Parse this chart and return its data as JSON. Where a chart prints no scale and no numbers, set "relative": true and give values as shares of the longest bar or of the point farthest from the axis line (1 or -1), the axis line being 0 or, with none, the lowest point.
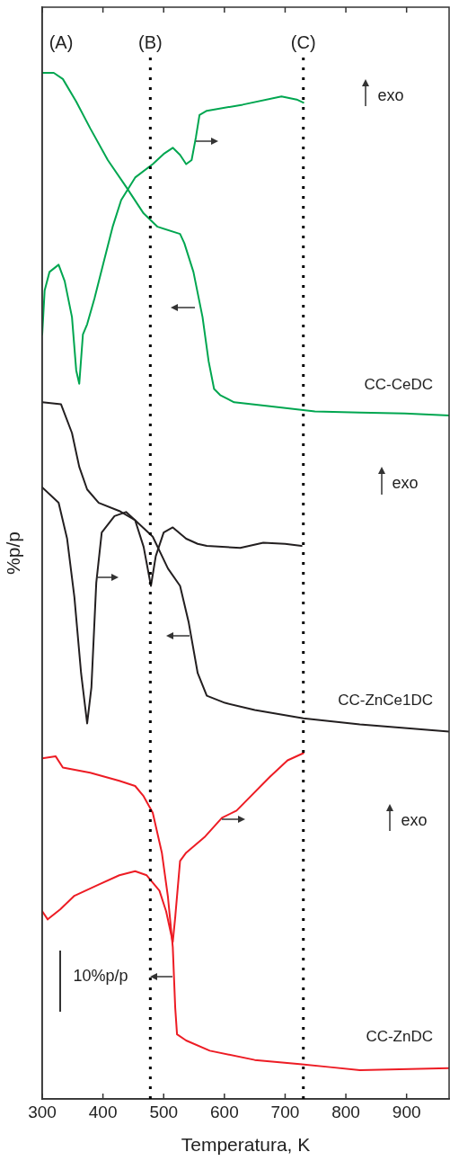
{
  "chart_data": {
    "type": "line",
    "relative": true,
    "xlabel": "Temperatura, K",
    "ylabel": "%p/p",
    "xlim": [
      300,
      970
    ],
    "xticks": [
      300,
      400,
      500,
      600,
      700,
      800,
      900
    ],
    "grid": false,
    "legend": false,
    "marker": "none",
    "line_style": "solid",
    "ref_lines": [
      {
        "axis": "x",
        "value": 478,
        "label": "(B)",
        "color": "#000000",
        "line_style": "dotted"
      },
      {
        "axis": "x",
        "value": 730,
        "label": "(C)",
        "color": "#000000",
        "line_style": "dotted"
      }
    ],
    "annotations": [
      "(A)",
      "exo",
      "exo",
      "exo",
      "10%p/p"
    ],
    "series": [
      {
        "name": "CC-CeDC",
        "color": "#00a650",
        "x": [
          300,
          319,
          334,
          356,
          379,
          408,
          438,
          467,
          490,
          527,
          534,
          549,
          564,
          574,
          583,
          593,
          616,
          675,
          749,
          823,
          897,
          970
        ],
        "values": [
          1.0,
          1.0,
          0.994,
          0.972,
          0.946,
          0.915,
          0.889,
          0.863,
          0.85,
          0.843,
          0.834,
          0.806,
          0.762,
          0.719,
          0.692,
          0.686,
          0.679,
          0.675,
          0.67,
          0.669,
          0.668,
          0.666
        ]
      },
      {
        "color": "#00a650",
        "x": [
          300,
          304,
          312,
          327,
          337,
          349,
          356,
          361,
          367,
          374,
          386,
          401,
          416,
          430,
          453,
          482,
          500,
          515,
          527,
          537,
          546,
          553,
          559,
          571,
          630,
          694,
          719,
          730
        ],
        "values": [
          0.745,
          0.788,
          0.806,
          0.813,
          0.797,
          0.762,
          0.71,
          0.697,
          0.745,
          0.755,
          0.78,
          0.815,
          0.85,
          0.876,
          0.898,
          0.911,
          0.921,
          0.927,
          0.92,
          0.911,
          0.915,
          0.937,
          0.959,
          0.963,
          0.969,
          0.977,
          0.974,
          0.971
        ]
      },
      {
        "name": "CC-ZnCe1DC",
        "color": "#231f20",
        "x": [
          300,
          331,
          349,
          361,
          374,
          393,
          427,
          453,
          482,
          507,
          527,
          541,
          556,
          571,
          601,
          650,
          730,
          823,
          970
        ],
        "values": [
          0.679,
          0.677,
          0.649,
          0.616,
          0.594,
          0.581,
          0.573,
          0.564,
          0.548,
          0.517,
          0.5,
          0.465,
          0.415,
          0.393,
          0.386,
          0.379,
          0.371,
          0.365,
          0.358
        ]
      },
      {
        "color": "#231f20",
        "x": [
          300,
          327,
          341,
          353,
          364,
          374,
          381,
          389,
          398,
          419,
          438,
          453,
          467,
          479,
          487,
          500,
          515,
          537,
          556,
          571,
          626,
          664,
          700,
          727
        ],
        "values": [
          0.596,
          0.581,
          0.546,
          0.489,
          0.415,
          0.366,
          0.401,
          0.503,
          0.552,
          0.568,
          0.572,
          0.564,
          0.538,
          0.5,
          0.529,
          0.552,
          0.557,
          0.546,
          0.541,
          0.539,
          0.537,
          0.542,
          0.541,
          0.539
        ]
      },
      {
        "name": "CC-ZnDC",
        "color": "#ed1c24",
        "x": [
          300,
          322,
          334,
          379,
          427,
          453,
          467,
          482,
          497,
          507,
          515,
          519,
          522,
          537,
          576,
          650,
          724,
          774,
          823,
          970
        ],
        "values": [
          0.332,
          0.334,
          0.323,
          0.318,
          0.31,
          0.305,
          0.295,
          0.279,
          0.24,
          0.197,
          0.148,
          0.089,
          0.063,
          0.057,
          0.047,
          0.038,
          0.034,
          0.031,
          0.028,
          0.03
        ]
      },
      {
        "color": "#ed1c24",
        "x": [
          300,
          309,
          330,
          353,
          393,
          427,
          453,
          472,
          493,
          504,
          515,
          519,
          527,
          537,
          567,
          596,
          620,
          675,
          704,
          730
        ],
        "values": [
          0.183,
          0.175,
          0.185,
          0.198,
          0.209,
          0.218,
          0.222,
          0.218,
          0.203,
          0.183,
          0.153,
          0.177,
          0.232,
          0.24,
          0.255,
          0.274,
          0.281,
          0.314,
          0.33,
          0.337
        ]
      }
    ]
  }
}
